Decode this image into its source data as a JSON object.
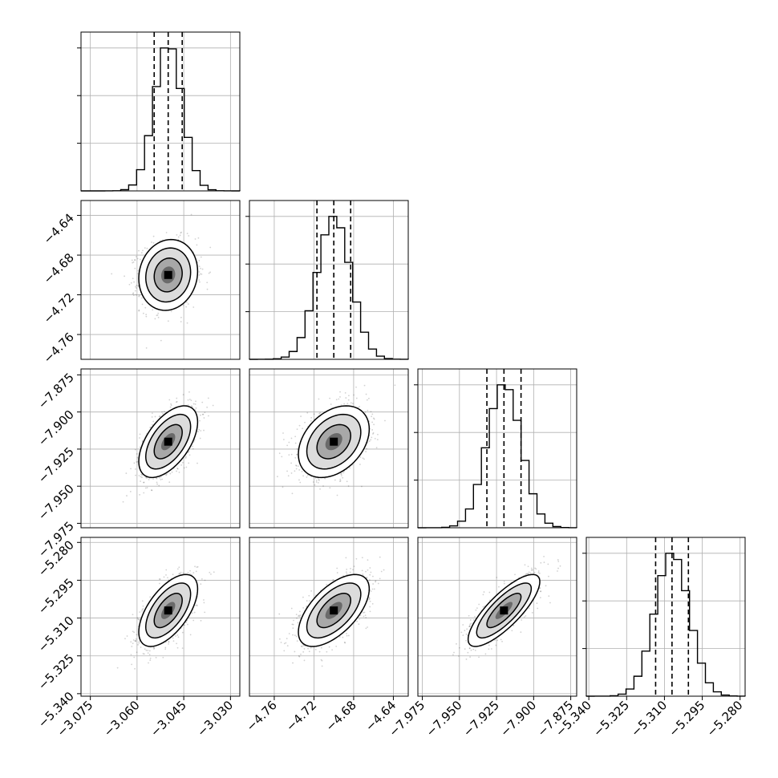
{
  "chart_data": {
    "type": "corner",
    "grid": true,
    "parameters": [
      {
        "ticks": [
          -3.075,
          -3.06,
          -3.045,
          -3.03
        ],
        "tick_labels": [
          "−3.075",
          "−3.060",
          "−3.045",
          "−3.030"
        ],
        "range": [
          -3.078,
          -3.027
        ],
        "mean": -3.05,
        "sd": 0.0045,
        "quantiles": [
          -3.0545,
          -3.05,
          -3.0455
        ]
      },
      {
        "ticks": [
          -4.76,
          -4.72,
          -4.68,
          -4.64
        ],
        "tick_labels": [
          "−4.76",
          "−4.72",
          "−4.68",
          "−4.64"
        ],
        "range": [
          -4.785,
          -4.625
        ],
        "mean": -4.7,
        "sd": 0.017,
        "quantiles": [
          -4.717,
          -4.7,
          -4.683
        ]
      },
      {
        "ticks": [
          -7.975,
          -7.95,
          -7.925,
          -7.9,
          -7.875
        ],
        "tick_labels": [
          "−7.975",
          "−7.950",
          "−7.925",
          "−7.900",
          "−7.875"
        ],
        "range": [
          -7.978,
          -7.871
        ],
        "mean": -7.92,
        "sd": 0.0115,
        "quantiles": [
          -7.9315,
          -7.92,
          -7.9085
        ]
      },
      {
        "ticks": [
          -5.34,
          -5.325,
          -5.31,
          -5.295,
          -5.28
        ],
        "tick_labels": [
          "−5.340",
          "−5.325",
          "−5.310",
          "−5.295",
          "−5.280"
        ],
        "range": [
          -5.341,
          -5.278
        ],
        "mean": -5.307,
        "sd": 0.0068,
        "quantiles": [
          -5.3135,
          -5.307,
          -5.3005
        ]
      }
    ],
    "correlations": [
      [
        1.0,
        0.1,
        0.55,
        0.6
      ],
      [
        0.1,
        1.0,
        0.35,
        0.6
      ],
      [
        0.55,
        0.35,
        1.0,
        0.8
      ],
      [
        0.6,
        0.6,
        0.8,
        1.0
      ]
    ]
  }
}
